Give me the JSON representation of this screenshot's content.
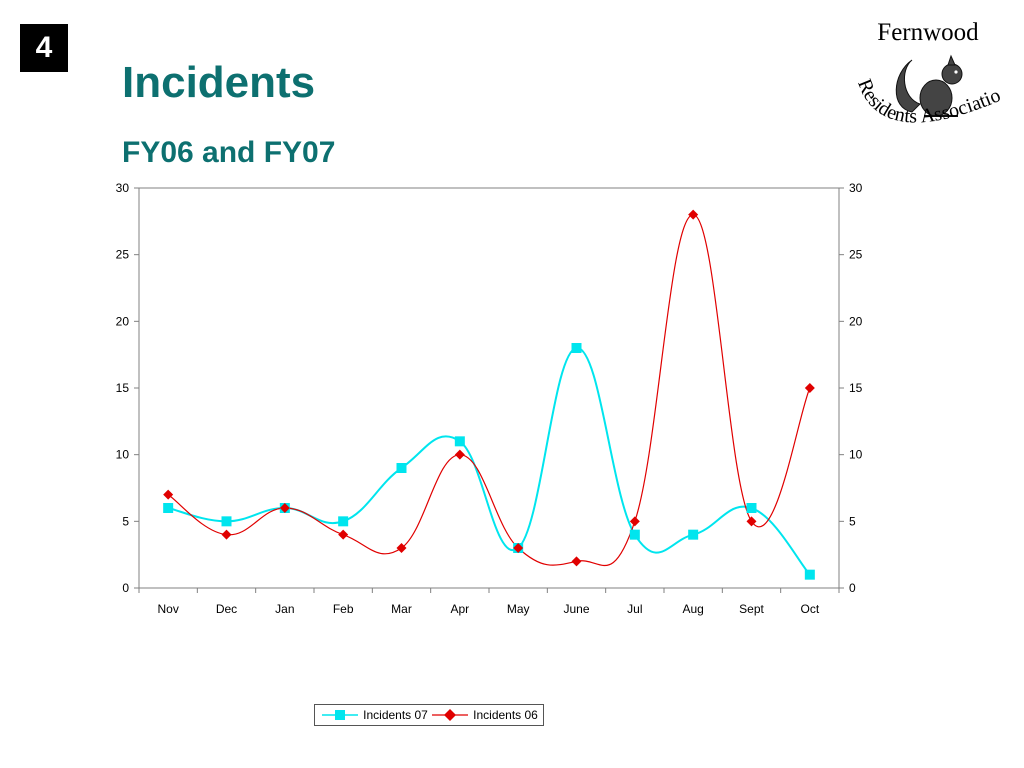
{
  "slide": {
    "number": "4",
    "title": "Incidents",
    "subtitle": "FY06 and FY07"
  },
  "logo": {
    "top_text": "Fernwood",
    "arc_text": "Residents Association",
    "icon": "squirrel-icon"
  },
  "colors": {
    "title": "#0d7070",
    "series_07": "#00e5ee",
    "series_06": "#e00000"
  },
  "chart_data": {
    "type": "line",
    "smoothed": true,
    "categories": [
      "Nov",
      "Dec",
      "Jan",
      "Feb",
      "Mar",
      "Apr",
      "May",
      "June",
      "Jul",
      "Aug",
      "Sept",
      "Oct"
    ],
    "series": [
      {
        "name": "Incidents 07",
        "marker": "square",
        "color": "#00e5ee",
        "values": [
          6,
          5,
          6,
          5,
          9,
          11,
          3,
          18,
          4,
          4,
          6,
          1
        ]
      },
      {
        "name": "Incidents 06",
        "marker": "diamond",
        "color": "#e00000",
        "values": [
          7,
          4,
          6,
          4,
          3,
          10,
          3,
          2,
          5,
          28,
          5,
          15
        ]
      }
    ],
    "ylim": [
      0,
      30
    ],
    "yticks": [
      0,
      5,
      10,
      15,
      20,
      25,
      30
    ],
    "secondary_y_axis": true,
    "grid": false,
    "legend_position": "bottom"
  }
}
